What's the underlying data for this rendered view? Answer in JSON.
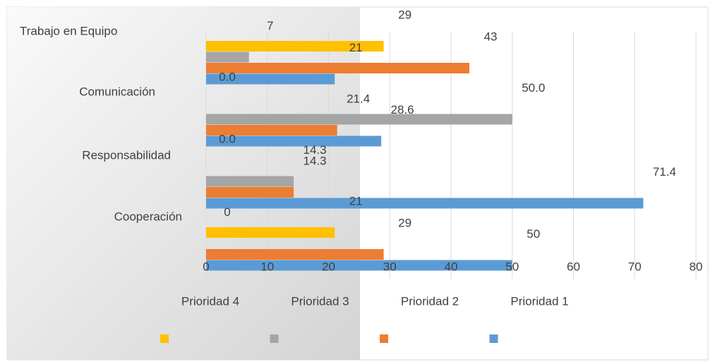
{
  "chart_data": {
    "type": "bar",
    "orientation": "horizontal",
    "categories": [
      "Trabajo en Equipo",
      "Comunicación",
      "Responsabilidad",
      "Cooperación"
    ],
    "series": [
      {
        "name": "Prioridad 4",
        "color": "#ffc000",
        "values": [
          29,
          0,
          0,
          21
        ],
        "value_labels": [
          "29",
          "0.0",
          "0.0",
          "21"
        ]
      },
      {
        "name": "Prioridad 3",
        "color": "#a5a5a5",
        "values": [
          7,
          50,
          14.3,
          0
        ],
        "value_labels": [
          "7",
          "50.0",
          "14.3",
          "0"
        ]
      },
      {
        "name": "Prioridad 2",
        "color": "#ed7d31",
        "values": [
          43,
          21.4,
          14.3,
          29
        ],
        "value_labels": [
          "43",
          "21.4",
          "14.3",
          "29"
        ]
      },
      {
        "name": "Prioridad 1",
        "color": "#5b9bd5",
        "values": [
          21,
          28.6,
          71.4,
          50
        ],
        "value_labels": [
          "21",
          "28.6",
          "71.4",
          "50"
        ]
      }
    ],
    "xlim": [
      0,
      80
    ],
    "xticks": [
      0,
      10,
      20,
      30,
      40,
      50,
      60,
      70,
      80
    ],
    "grid": true
  }
}
